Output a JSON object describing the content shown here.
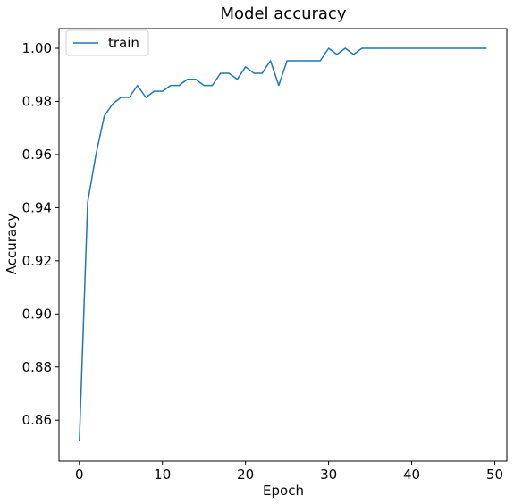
{
  "chart_data": {
    "type": "line",
    "title": "Model accuracy",
    "xlabel": "Epoch",
    "ylabel": "Accuracy",
    "xlim": [
      -2.45,
      51.45
    ],
    "ylim": [
      0.8446,
      1.0074
    ],
    "xticks": [
      0,
      10,
      20,
      30,
      40,
      50
    ],
    "yticks": [
      0.86,
      0.88,
      0.9,
      0.92,
      0.94,
      0.96,
      0.98,
      1.0
    ],
    "ytick_labels": [
      "0.86",
      "0.88",
      "0.90",
      "0.92",
      "0.94",
      "0.96",
      "0.98",
      "1.00"
    ],
    "grid": false,
    "legend_position": "upper-left",
    "series": [
      {
        "name": "train",
        "color": "#1f77b4",
        "x": [
          0,
          1,
          2,
          3,
          4,
          5,
          6,
          7,
          8,
          9,
          10,
          11,
          12,
          13,
          14,
          15,
          16,
          17,
          18,
          19,
          20,
          21,
          22,
          23,
          24,
          25,
          26,
          27,
          28,
          29,
          30,
          31,
          32,
          33,
          34,
          35,
          36,
          37,
          38,
          39,
          40,
          41,
          42,
          43,
          44,
          45,
          46,
          47,
          48,
          49
        ],
        "values": [
          0.852,
          0.942,
          0.96,
          0.9745,
          0.979,
          0.9815,
          0.9815,
          0.986,
          0.9815,
          0.9838,
          0.9838,
          0.986,
          0.986,
          0.9883,
          0.9883,
          0.986,
          0.986,
          0.9906,
          0.9906,
          0.9883,
          0.993,
          0.9906,
          0.9906,
          0.9953,
          0.986,
          0.9953,
          0.9953,
          0.9953,
          0.9953,
          0.9953,
          1.0,
          0.9977,
          1.0,
          0.9977,
          1.0,
          1.0,
          1.0,
          1.0,
          1.0,
          1.0,
          1.0,
          1.0,
          1.0,
          1.0,
          1.0,
          1.0,
          1.0,
          1.0,
          1.0,
          1.0
        ]
      }
    ]
  }
}
